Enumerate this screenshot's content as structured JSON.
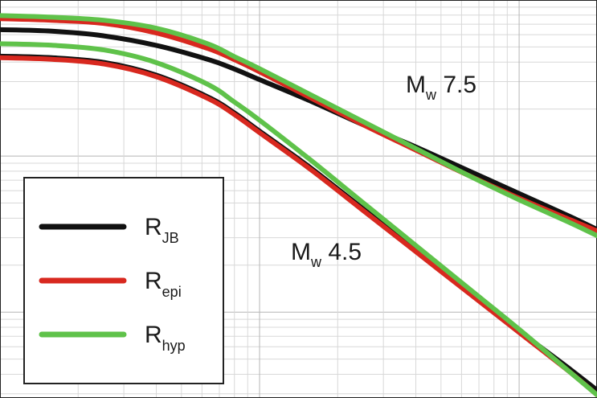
{
  "chart_data": {
    "type": "line",
    "xscale": "log",
    "yscale": "log",
    "grid": true,
    "legend_placement": "bottom-left",
    "colors": {
      "RJB": "#111111",
      "Repi": "#d8281f",
      "Rhyp": "#5fc24a"
    },
    "legend": [
      {
        "key": "RJB",
        "base": "R",
        "sub": "JB"
      },
      {
        "key": "Repi",
        "base": "R",
        "sub": "epi"
      },
      {
        "key": "Rhyp",
        "base": "R",
        "sub": "hyp"
      }
    ],
    "annotations": [
      {
        "label": "Mw 7.5",
        "base": "M",
        "sub": "w",
        "rest": " 7.5"
      },
      {
        "label": "Mw 4.5",
        "base": "M",
        "sub": "w",
        "rest": " 4.5"
      }
    ],
    "series": [
      {
        "group": "Mw 7.5",
        "key": "RJB",
        "points": [
          [
            0,
            -0.19
          ],
          [
            0.2,
            -0.2
          ],
          [
            0.4,
            -0.23
          ],
          [
            0.6,
            -0.29
          ],
          [
            0.8,
            -0.38
          ],
          [
            0.9,
            -0.44
          ],
          [
            1.0,
            -0.51
          ],
          [
            1.2,
            -0.65
          ],
          [
            1.4,
            -0.8
          ],
          [
            1.6,
            -0.94
          ],
          [
            1.8,
            -1.09
          ],
          [
            2.0,
            -1.24
          ],
          [
            2.2,
            -1.39
          ],
          [
            2.3,
            -1.47
          ]
        ]
      },
      {
        "group": "Mw 7.5",
        "key": "Repi",
        "points": [
          [
            0,
            -0.12
          ],
          [
            0.2,
            -0.13
          ],
          [
            0.4,
            -0.15
          ],
          [
            0.6,
            -0.21
          ],
          [
            0.8,
            -0.31
          ],
          [
            0.9,
            -0.38
          ],
          [
            1.0,
            -0.46
          ],
          [
            1.2,
            -0.63
          ],
          [
            1.4,
            -0.8
          ],
          [
            1.6,
            -0.96
          ],
          [
            1.8,
            -1.12
          ],
          [
            2.0,
            -1.27
          ],
          [
            2.2,
            -1.41
          ],
          [
            2.3,
            -1.48
          ]
        ]
      },
      {
        "group": "Mw 7.5",
        "key": "Rhyp",
        "points": [
          [
            0,
            -0.1
          ],
          [
            0.2,
            -0.11
          ],
          [
            0.4,
            -0.13
          ],
          [
            0.6,
            -0.18
          ],
          [
            0.8,
            -0.28
          ],
          [
            0.9,
            -0.36
          ],
          [
            1.0,
            -0.44
          ],
          [
            1.2,
            -0.61
          ],
          [
            1.4,
            -0.78
          ],
          [
            1.6,
            -0.95
          ],
          [
            1.8,
            -1.12
          ],
          [
            2.0,
            -1.28
          ],
          [
            2.2,
            -1.43
          ],
          [
            2.3,
            -1.51
          ]
        ]
      },
      {
        "group": "Mw 4.5",
        "key": "RJB",
        "points": [
          [
            0,
            -0.36
          ],
          [
            0.2,
            -0.37
          ],
          [
            0.4,
            -0.4
          ],
          [
            0.6,
            -0.48
          ],
          [
            0.8,
            -0.62
          ],
          [
            0.9,
            -0.72
          ],
          [
            1.0,
            -0.84
          ],
          [
            1.2,
            -1.08
          ],
          [
            1.4,
            -1.34
          ],
          [
            1.6,
            -1.6
          ],
          [
            1.8,
            -1.86
          ],
          [
            2.0,
            -2.12
          ],
          [
            2.2,
            -2.37
          ],
          [
            2.3,
            -2.5
          ]
        ]
      },
      {
        "group": "Mw 4.5",
        "key": "Repi",
        "points": [
          [
            0,
            -0.37
          ],
          [
            0.2,
            -0.38
          ],
          [
            0.4,
            -0.41
          ],
          [
            0.6,
            -0.49
          ],
          [
            0.8,
            -0.63
          ],
          [
            0.9,
            -0.73
          ],
          [
            1.0,
            -0.85
          ],
          [
            1.2,
            -1.09
          ],
          [
            1.4,
            -1.35
          ],
          [
            1.6,
            -1.61
          ],
          [
            1.8,
            -1.87
          ],
          [
            2.0,
            -2.13
          ],
          [
            2.2,
            -2.39
          ],
          [
            2.3,
            -2.53
          ]
        ]
      },
      {
        "group": "Mw 4.5",
        "key": "Rhyp",
        "points": [
          [
            0,
            -0.28
          ],
          [
            0.2,
            -0.29
          ],
          [
            0.4,
            -0.32
          ],
          [
            0.6,
            -0.4
          ],
          [
            0.8,
            -0.54
          ],
          [
            0.9,
            -0.65
          ],
          [
            1.0,
            -0.77
          ],
          [
            1.2,
            -1.03
          ],
          [
            1.4,
            -1.3
          ],
          [
            1.6,
            -1.57
          ],
          [
            1.8,
            -1.84
          ],
          [
            2.0,
            -2.11
          ],
          [
            2.2,
            -2.39
          ],
          [
            2.3,
            -2.53
          ]
        ]
      }
    ],
    "xlim": [
      0,
      2.3
    ],
    "ylim": [
      -2.55,
      0.0
    ]
  }
}
